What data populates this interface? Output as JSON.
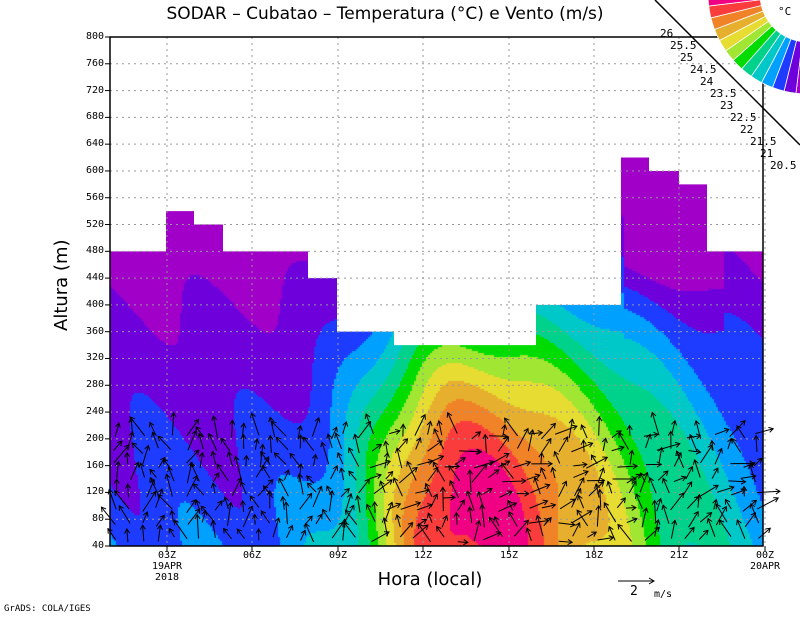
{
  "title": "SODAR – Cubatao – Temperatura (°C) e Vento (m/s)",
  "credit": "GrADS: COLA/IGES",
  "wind_scale": {
    "value": "2",
    "unit": "m/s"
  },
  "colorbar": {
    "unit": "°C",
    "labels": [
      "20.5",
      "21",
      "21.5",
      "22",
      "22.5",
      "23",
      "23.5",
      "24",
      "24.5",
      "25",
      "25.5",
      "26"
    ],
    "colors": [
      "#a000c8",
      "#6e00dc",
      "#1e3cff",
      "#00a0ff",
      "#00c8c8",
      "#00d28c",
      "#00dc00",
      "#a0e632",
      "#e6dc32",
      "#e6af2d",
      "#f08228",
      "#fa3c3c",
      "#f00082"
    ]
  },
  "chart_data": {
    "type": "heatmap",
    "title": "SODAR – Cubatao – Temperatura (°C) e Vento (m/s)",
    "xlabel": "Hora (local)",
    "ylabel": "Altura (m)",
    "ylim": [
      40,
      800
    ],
    "yticks": [
      "40",
      "80",
      "120",
      "160",
      "200",
      "240",
      "280",
      "320",
      "360",
      "400",
      "440",
      "480",
      "520",
      "560",
      "600",
      "640",
      "680",
      "720",
      "760",
      "800"
    ],
    "xticks": [
      {
        "label": "03Z",
        "sub1": "19APR",
        "sub2": "2018"
      },
      {
        "label": "06Z"
      },
      {
        "label": "09Z"
      },
      {
        "label": "12Z"
      },
      {
        "label": "15Z"
      },
      {
        "label": "18Z"
      },
      {
        "label": "21Z"
      },
      {
        "label": "00Z",
        "sub1": "20APR"
      }
    ],
    "levels": [
      20.5,
      21,
      21.5,
      22,
      22.5,
      23,
      23.5,
      24,
      24.5,
      25,
      25.5,
      26
    ],
    "data_top_heights_m": [
      480,
      540,
      520,
      480,
      480,
      440,
      360,
      340,
      400,
      620,
      600,
      580,
      480
    ],
    "max_temperature_approx": 26.2,
    "max_at": "13Z, ~100 m",
    "grid": true
  }
}
